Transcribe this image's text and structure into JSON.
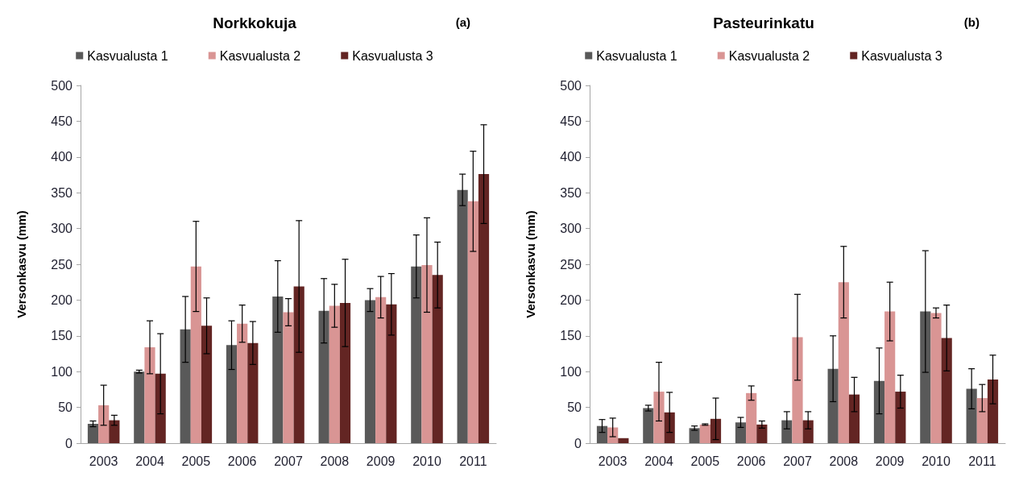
{
  "chart_data": [
    {
      "type": "bar",
      "title": "Norkkokuja",
      "annotations": [
        "(a)"
      ],
      "ylabel": "Versonkasvu (mm)",
      "categories": [
        "2003",
        "2004",
        "2005",
        "2006",
        "2007",
        "2008",
        "2009",
        "2010",
        "2011"
      ],
      "series": [
        {
          "name": "Kasvualusta 1",
          "color": "#595959",
          "values": [
            27,
            100,
            159,
            137,
            205,
            185,
            200,
            247,
            354
          ],
          "errors": [
            4,
            2,
            46,
            34,
            50,
            45,
            16,
            44,
            22
          ]
        },
        {
          "name": "Kasvualusta 2",
          "color": "#d99594",
          "values": [
            53,
            134,
            247,
            167,
            183,
            192,
            204,
            249,
            338
          ],
          "errors": [
            28,
            37,
            63,
            26,
            19,
            30,
            29,
            66,
            70
          ]
        },
        {
          "name": "Kasvualusta 3",
          "color": "#632523",
          "values": [
            32,
            97,
            164,
            140,
            219,
            196,
            194,
            235,
            376
          ],
          "errors": [
            7,
            56,
            39,
            30,
            92,
            61,
            43,
            46,
            69
          ]
        }
      ],
      "ylim": [
        0,
        500
      ],
      "yticks": [
        0,
        50,
        100,
        150,
        200,
        250,
        300,
        350,
        400,
        450,
        500
      ],
      "grid": false,
      "legend": "top"
    },
    {
      "type": "bar",
      "title": "Pasteurinkatu",
      "annotations": [
        "(b)"
      ],
      "ylabel": "Versonkasvu (mm)",
      "categories": [
        "2003",
        "2004",
        "2005",
        "2006",
        "2007",
        "2008",
        "2009",
        "2010",
        "2011"
      ],
      "series": [
        {
          "name": "Kasvualusta 1",
          "color": "#595959",
          "values": [
            24,
            49,
            21,
            29,
            32,
            104,
            87,
            184,
            76
          ],
          "errors": [
            9,
            4,
            3,
            7,
            12,
            46,
            46,
            85,
            28
          ]
        },
        {
          "name": "Kasvualusta 2",
          "color": "#d99594",
          "values": [
            22,
            72,
            26,
            70,
            148,
            225,
            184,
            182,
            63
          ],
          "errors": [
            13,
            41,
            1,
            10,
            60,
            50,
            41,
            7,
            19
          ]
        },
        {
          "name": "Kasvualusta 3",
          "color": "#632523",
          "values": [
            7,
            43,
            34,
            26,
            32,
            68,
            72,
            147,
            89
          ],
          "errors": [
            null,
            28,
            29,
            5,
            12,
            24,
            23,
            46,
            34
          ]
        }
      ],
      "ylim": [
        0,
        500
      ],
      "yticks": [
        0,
        50,
        100,
        150,
        200,
        250,
        300,
        350,
        400,
        450,
        500
      ],
      "grid": false,
      "legend": "top"
    }
  ]
}
